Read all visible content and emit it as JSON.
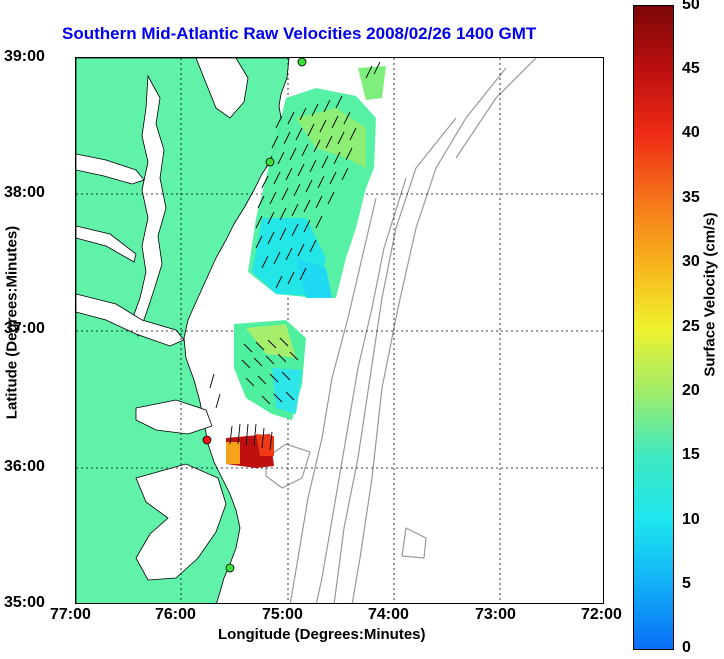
{
  "title": "Southern Mid-Atlantic Raw Velocities 2008/02/26 1400 GMT",
  "x_axis": {
    "label": "Longitude (Degrees:Minutes)",
    "ticks": [
      "77:00",
      "76:00",
      "75:00",
      "74:00",
      "73:00",
      "72:00"
    ]
  },
  "y_axis": {
    "label": "Latitude (Degrees:Minutes)",
    "ticks": [
      "39:00",
      "38:00",
      "37:00",
      "36:00",
      "35:00"
    ]
  },
  "colorbar": {
    "label": "Surface Velocity (cm/s)",
    "ticks": [
      "50",
      "45",
      "40",
      "35",
      "30",
      "25",
      "20",
      "15",
      "10",
      "5",
      "0"
    ],
    "range": [
      0,
      50
    ],
    "colormap": "jet"
  },
  "colors": {
    "land": "#5ff2a8",
    "title": "#0000ee",
    "bathymetry": "#999999",
    "grid": "#000000"
  },
  "stations": [
    "green",
    "green",
    "green",
    "red"
  ]
}
